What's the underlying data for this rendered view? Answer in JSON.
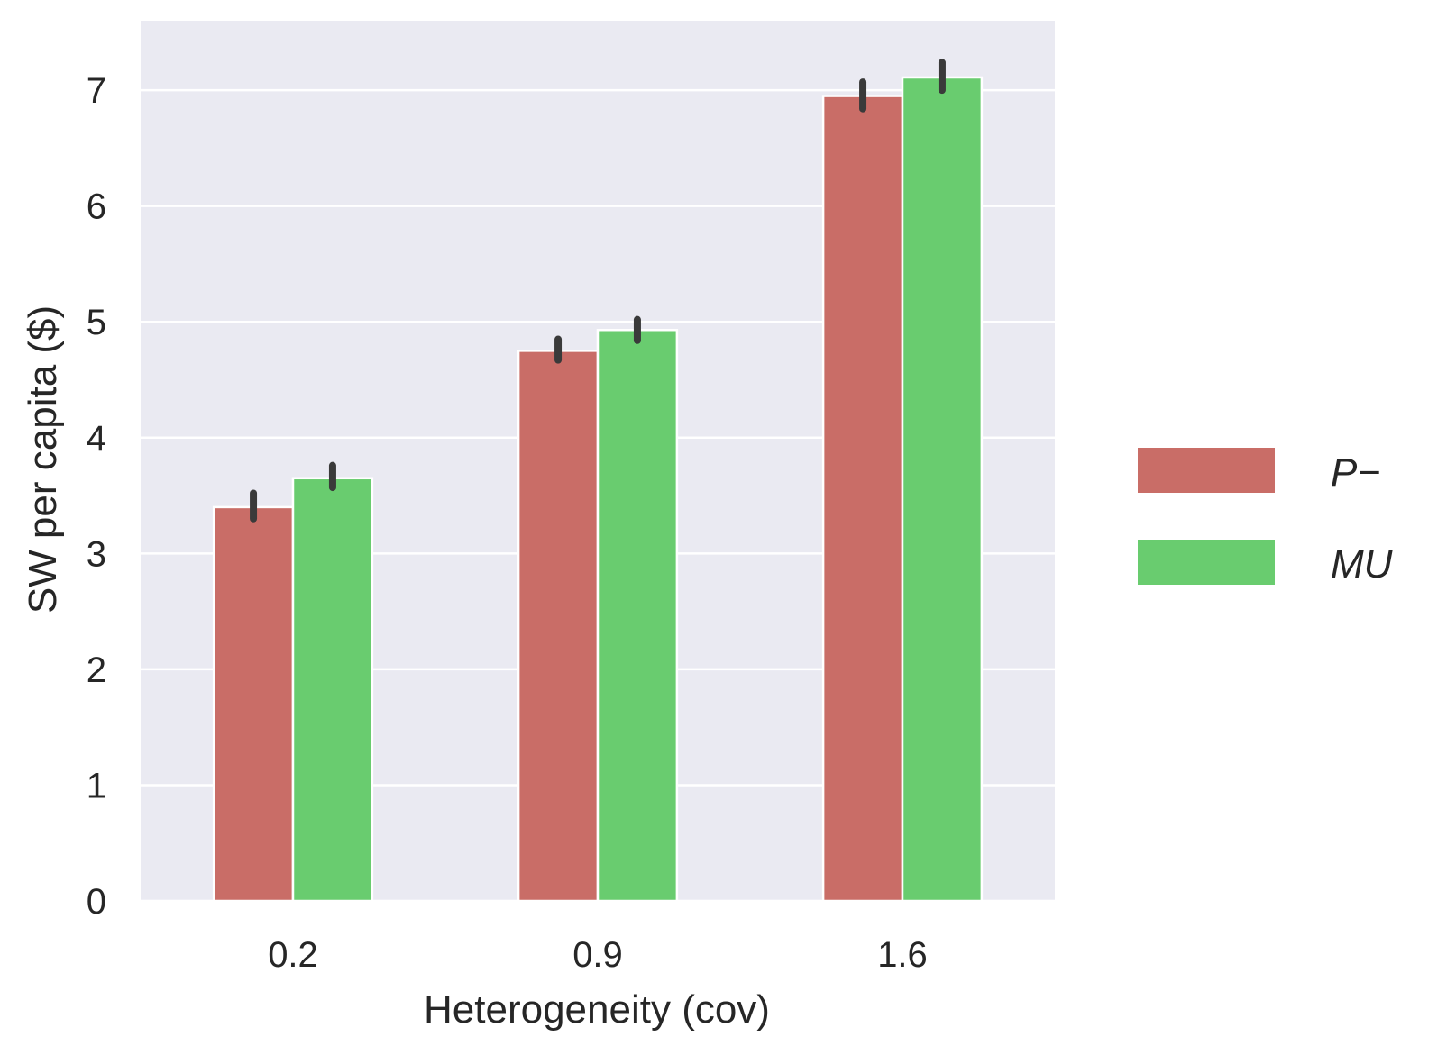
{
  "chart_data": {
    "type": "bar",
    "xlabel": "Heterogeneity (cov)",
    "ylabel": "SW per capita ($)",
    "categories": [
      "0.2",
      "0.9",
      "1.6"
    ],
    "ylim": [
      0,
      7.6
    ],
    "yticks": [
      "0",
      "1",
      "2",
      "3",
      "4",
      "5",
      "6",
      "7"
    ],
    "grid": true,
    "legend_position": "right",
    "background": "#EAEAF2",
    "series": [
      {
        "name": "P−",
        "color": "#C96D67",
        "values": [
          3.4,
          4.75,
          6.95
        ],
        "err_low": [
          3.3,
          4.67,
          6.84
        ],
        "err_high": [
          3.52,
          4.85,
          7.07
        ]
      },
      {
        "name": "MU",
        "color": "#69CC6F",
        "values": [
          3.65,
          4.93,
          7.11
        ],
        "err_low": [
          3.57,
          4.84,
          7.0
        ],
        "err_high": [
          3.76,
          5.02,
          7.24
        ]
      }
    ],
    "errorbar_color": "#3A3A3A"
  }
}
